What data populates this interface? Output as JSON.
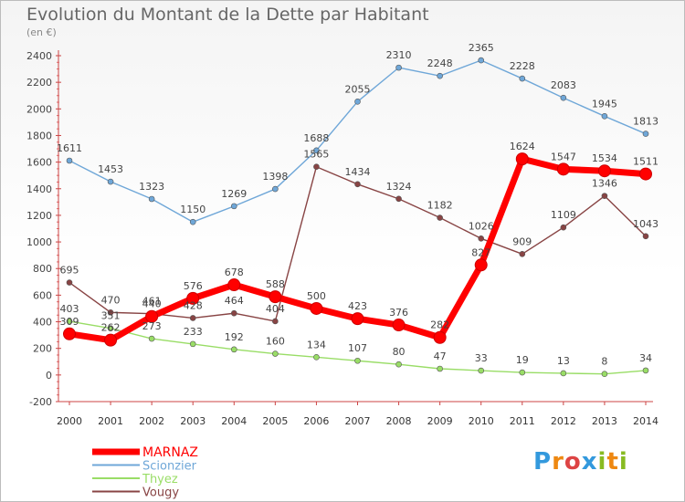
{
  "title": "Evolution du Montant de la Dette par Habitant",
  "subtitle": "(en €)",
  "chart_data": {
    "type": "line",
    "title": "Evolution du Montant de la Dette par Habitant",
    "subtitle": "(en €)",
    "x": [
      "2000",
      "2001",
      "2002",
      "2003",
      "2004",
      "2005",
      "2006",
      "2007",
      "2008",
      "2009",
      "2010",
      "2011",
      "2012",
      "2013",
      "2014"
    ],
    "ylim": [
      -200,
      2400
    ],
    "yticks": [
      -200,
      0,
      200,
      400,
      600,
      800,
      1000,
      1200,
      1400,
      1600,
      1800,
      2000,
      2200,
      2400
    ],
    "grid": false,
    "legend_position": "bottom-left",
    "series": [
      {
        "name": "MARNAZ",
        "color": "#ff0000",
        "values": [
          309,
          262,
          440,
          576,
          678,
          588,
          500,
          423,
          376,
          282,
          827,
          1624,
          1547,
          1534,
          1511
        ]
      },
      {
        "name": "Scionzier",
        "color": "#6fa7d8",
        "values": [
          1611,
          1453,
          1323,
          1150,
          1269,
          1398,
          1688,
          2055,
          2310,
          2248,
          2365,
          2228,
          2083,
          1945,
          1813
        ]
      },
      {
        "name": "Thyez",
        "color": "#99dd66",
        "values": [
          403,
          351,
          273,
          233,
          192,
          160,
          134,
          107,
          80,
          47,
          33,
          19,
          13,
          8,
          34
        ]
      },
      {
        "name": "Vougy",
        "color": "#884444",
        "values": [
          695,
          470,
          461,
          428,
          464,
          404,
          1565,
          1434,
          1324,
          1182,
          1026,
          909,
          1109,
          1346,
          1043
        ]
      }
    ]
  },
  "logo": {
    "letters": [
      {
        "ch": "P",
        "color": "#3399dd"
      },
      {
        "ch": "r",
        "color": "#ee8811"
      },
      {
        "ch": "o",
        "color": "#dd4444"
      },
      {
        "ch": "x",
        "color": "#3399dd"
      },
      {
        "ch": "i",
        "color": "#88bb22"
      },
      {
        "ch": "t",
        "color": "#ee8811"
      },
      {
        "ch": "i",
        "color": "#88bb22"
      }
    ]
  }
}
